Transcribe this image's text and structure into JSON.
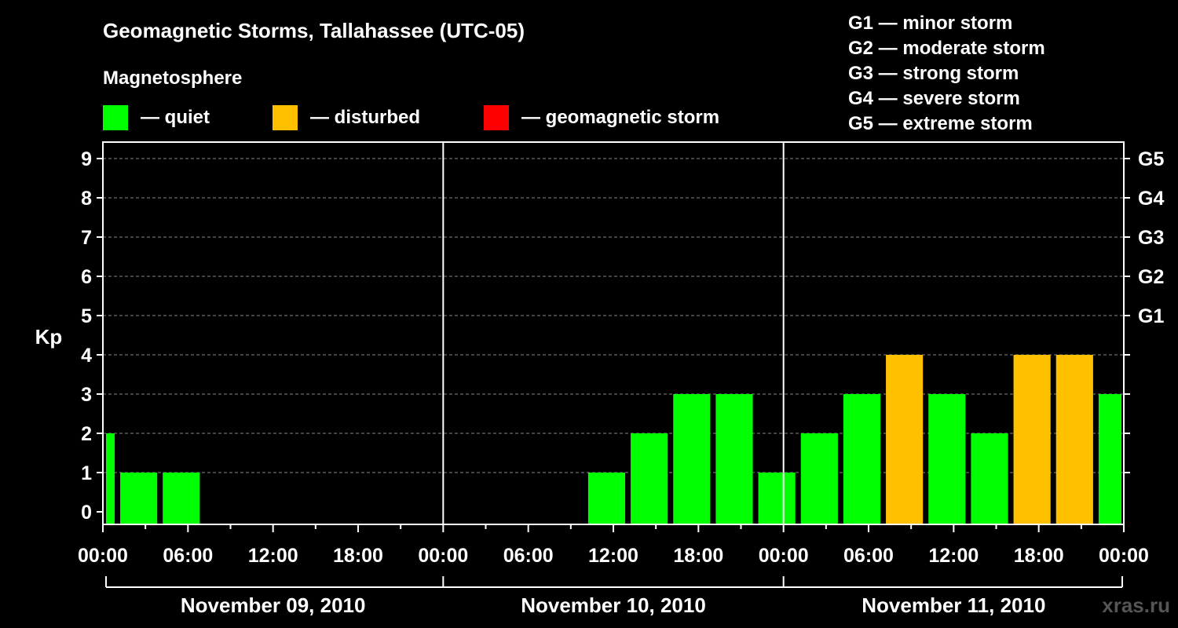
{
  "title": "Geomagnetic Storms, Tallahassee (UTC-05)",
  "subtitle": "Magnetosphere",
  "legend": [
    {
      "label": "— quiet",
      "color": "#00ff00"
    },
    {
      "label": "— disturbed",
      "color": "#ffc000"
    },
    {
      "label": "— geomagnetic storm",
      "color": "#ff0000"
    }
  ],
  "storm_scale": [
    "G1 — minor storm",
    "G2 — moderate storm",
    "G3 — strong storm",
    "G4 — severe storm",
    "G5 — extreme storm"
  ],
  "watermark": "xras.ru",
  "colors": {
    "quiet": "#00ff00",
    "disturbed": "#ffc000",
    "storm": "#ff0000",
    "grid": "#888888"
  },
  "chart_data": {
    "type": "bar",
    "ylabel": "Kp",
    "ylim": [
      0,
      9
    ],
    "yticks": [
      "0",
      "1",
      "2",
      "3",
      "4",
      "5",
      "6",
      "7",
      "8",
      "9"
    ],
    "right_ticks": [
      {
        "kp": 5,
        "label": "G1"
      },
      {
        "kp": 6,
        "label": "G2"
      },
      {
        "kp": 7,
        "label": "G3"
      },
      {
        "kp": 8,
        "label": "G4"
      },
      {
        "kp": 9,
        "label": "G5"
      }
    ],
    "xlim_hours": [
      0,
      72
    ],
    "xtick_labels": [
      "00:00",
      "06:00",
      "12:00",
      "18:00",
      "00:00",
      "06:00",
      "12:00",
      "18:00",
      "00:00",
      "06:00",
      "12:00",
      "18:00",
      "00:00"
    ],
    "days": [
      "November 09, 2010",
      "November 10, 2010",
      "November 11, 2010"
    ],
    "grid": true,
    "bars": [
      {
        "start_hour": 0,
        "end_hour": 1,
        "kp": 2,
        "level": "quiet"
      },
      {
        "start_hour": 1,
        "end_hour": 4,
        "kp": 1,
        "level": "quiet"
      },
      {
        "start_hour": 4,
        "end_hour": 7,
        "kp": 1,
        "level": "quiet"
      },
      {
        "start_hour": 34,
        "end_hour": 37,
        "kp": 1,
        "level": "quiet"
      },
      {
        "start_hour": 37,
        "end_hour": 40,
        "kp": 2,
        "level": "quiet"
      },
      {
        "start_hour": 40,
        "end_hour": 43,
        "kp": 3,
        "level": "quiet"
      },
      {
        "start_hour": 43,
        "end_hour": 46,
        "kp": 3,
        "level": "quiet"
      },
      {
        "start_hour": 46,
        "end_hour": 49,
        "kp": 1,
        "level": "quiet"
      },
      {
        "start_hour": 49,
        "end_hour": 52,
        "kp": 2,
        "level": "quiet"
      },
      {
        "start_hour": 52,
        "end_hour": 55,
        "kp": 3,
        "level": "quiet"
      },
      {
        "start_hour": 55,
        "end_hour": 58,
        "kp": 4,
        "level": "disturbed"
      },
      {
        "start_hour": 58,
        "end_hour": 61,
        "kp": 3,
        "level": "quiet"
      },
      {
        "start_hour": 61,
        "end_hour": 64,
        "kp": 2,
        "level": "quiet"
      },
      {
        "start_hour": 64,
        "end_hour": 67,
        "kp": 4,
        "level": "disturbed"
      },
      {
        "start_hour": 67,
        "end_hour": 70,
        "kp": 4,
        "level": "disturbed"
      },
      {
        "start_hour": 70,
        "end_hour": 72,
        "kp": 3,
        "level": "quiet"
      }
    ]
  }
}
